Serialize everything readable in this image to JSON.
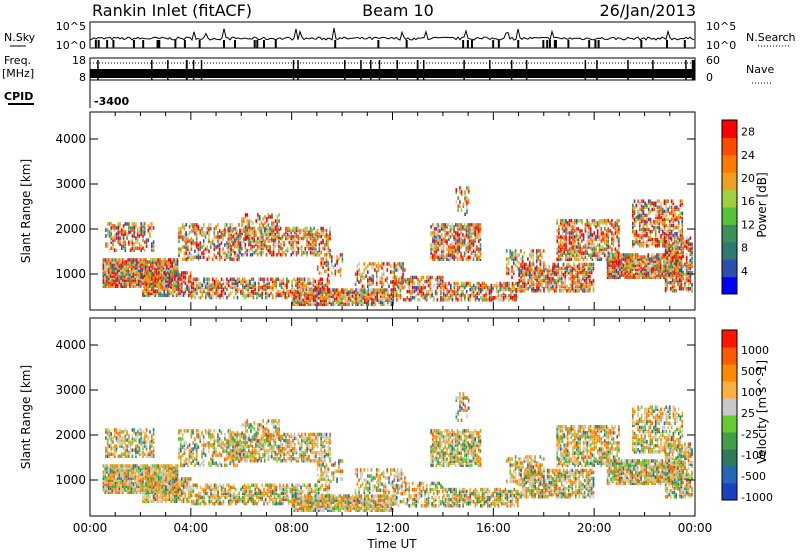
{
  "header": {
    "station": "Rankin Inlet (fitACF)",
    "beam": "Beam 10",
    "date": "26/Jan/2013"
  },
  "top_panels": {
    "nsky_label": "N.Sky",
    "nsearch_label": "N.Search",
    "noise_ticks": [
      "10^5",
      "10^0"
    ],
    "freq_label": "Freq.",
    "freq_unit": "[MHz]",
    "freq_ticks": [
      "18",
      "8"
    ],
    "nave_label": "Nave",
    "nave_ticks": [
      "60",
      "0"
    ],
    "cpid_label": "CPID",
    "cpid_value": "-3400"
  },
  "colors": {
    "power_scale": [
      "#0000ff",
      "#2a4fb0",
      "#2f7a6e",
      "#3f8f5a",
      "#55c23a",
      "#9fd040",
      "#f0a020",
      "#ff7a00",
      "#ff4a00",
      "#ff0000"
    ],
    "velocity_scale": [
      "#1a3fc0",
      "#2566b8",
      "#2f7a5e",
      "#3fa04a",
      "#66cc33",
      "#c8c8c8",
      "#ffb040",
      "#ff8a00",
      "#ff5a00",
      "#ff1500"
    ]
  },
  "chart_data": [
    {
      "type": "heatmap",
      "name": "power",
      "xlabel": "",
      "ylabel": "Slant Range [km]",
      "x_range_hours": [
        0,
        24
      ],
      "ylim": [
        200,
        4600
      ],
      "yticks": [
        1000,
        2000,
        3000,
        4000
      ],
      "colorbar": {
        "label": "Power [dB]",
        "ticks": [
          "4",
          "8",
          "12",
          "16",
          "20",
          "24",
          "28"
        ],
        "range": [
          0,
          30
        ]
      }
    },
    {
      "type": "heatmap",
      "name": "velocity",
      "xlabel": "Time UT",
      "ylabel": "Slant Range [km]",
      "x_range_hours": [
        0,
        24
      ],
      "ylim": [
        200,
        4600
      ],
      "yticks": [
        1000,
        2000,
        3000,
        4000
      ],
      "xticks": [
        "00:00",
        "04:00",
        "08:00",
        "12:00",
        "16:00",
        "20:00",
        "00:00"
      ],
      "colorbar": {
        "label": "Velocity [m s^-1]",
        "ticks": [
          "1000",
          "500",
          "100",
          "25",
          "-25",
          "-100",
          "-500",
          "-1000"
        ]
      }
    }
  ]
}
